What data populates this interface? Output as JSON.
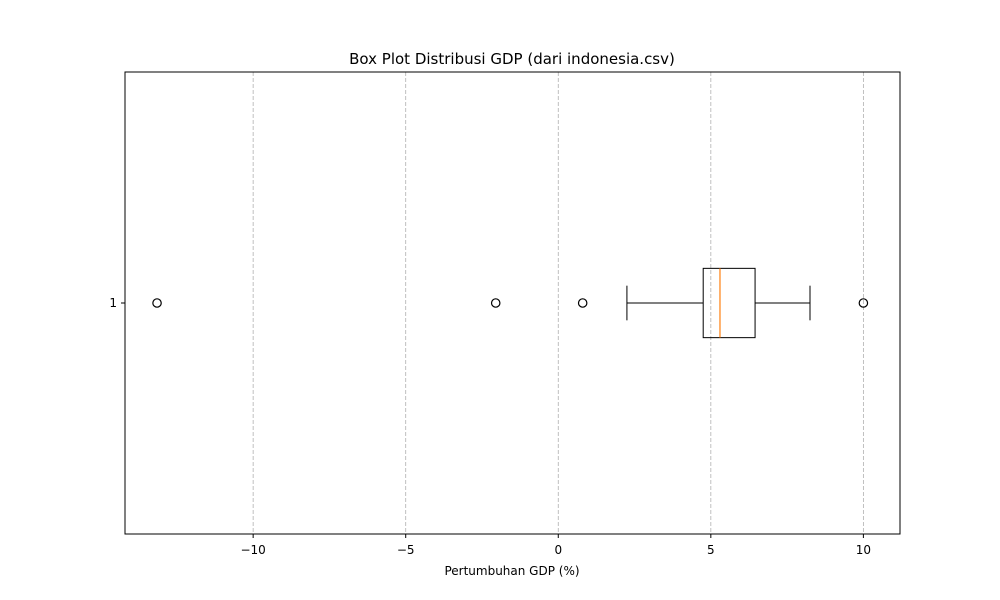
{
  "chart_data": {
    "type": "box",
    "orientation": "horizontal",
    "title": "Box Plot Distribusi GDP (dari indonesia.csv)",
    "xlabel": "Pertumbuhan GDP (%)",
    "ylabel": "",
    "xlim": [
      -14.2,
      11.2
    ],
    "xticks": [
      -10,
      -5,
      0,
      5,
      10
    ],
    "xtick_labels": [
      "−10",
      "−5",
      "0",
      "5",
      "10"
    ],
    "grid": {
      "axis": "x",
      "style": "dashed"
    },
    "boxes": [
      {
        "category": "1",
        "whisker_low": 2.25,
        "q1": 4.75,
        "median": 5.3,
        "q3": 6.45,
        "whisker_high": 8.25,
        "outliers": [
          -13.15,
          -2.05,
          0.8,
          10.0
        ]
      }
    ],
    "colors": {
      "box": "#000000",
      "median": "#ff7f0e",
      "grid": "#b0b0b0"
    }
  }
}
